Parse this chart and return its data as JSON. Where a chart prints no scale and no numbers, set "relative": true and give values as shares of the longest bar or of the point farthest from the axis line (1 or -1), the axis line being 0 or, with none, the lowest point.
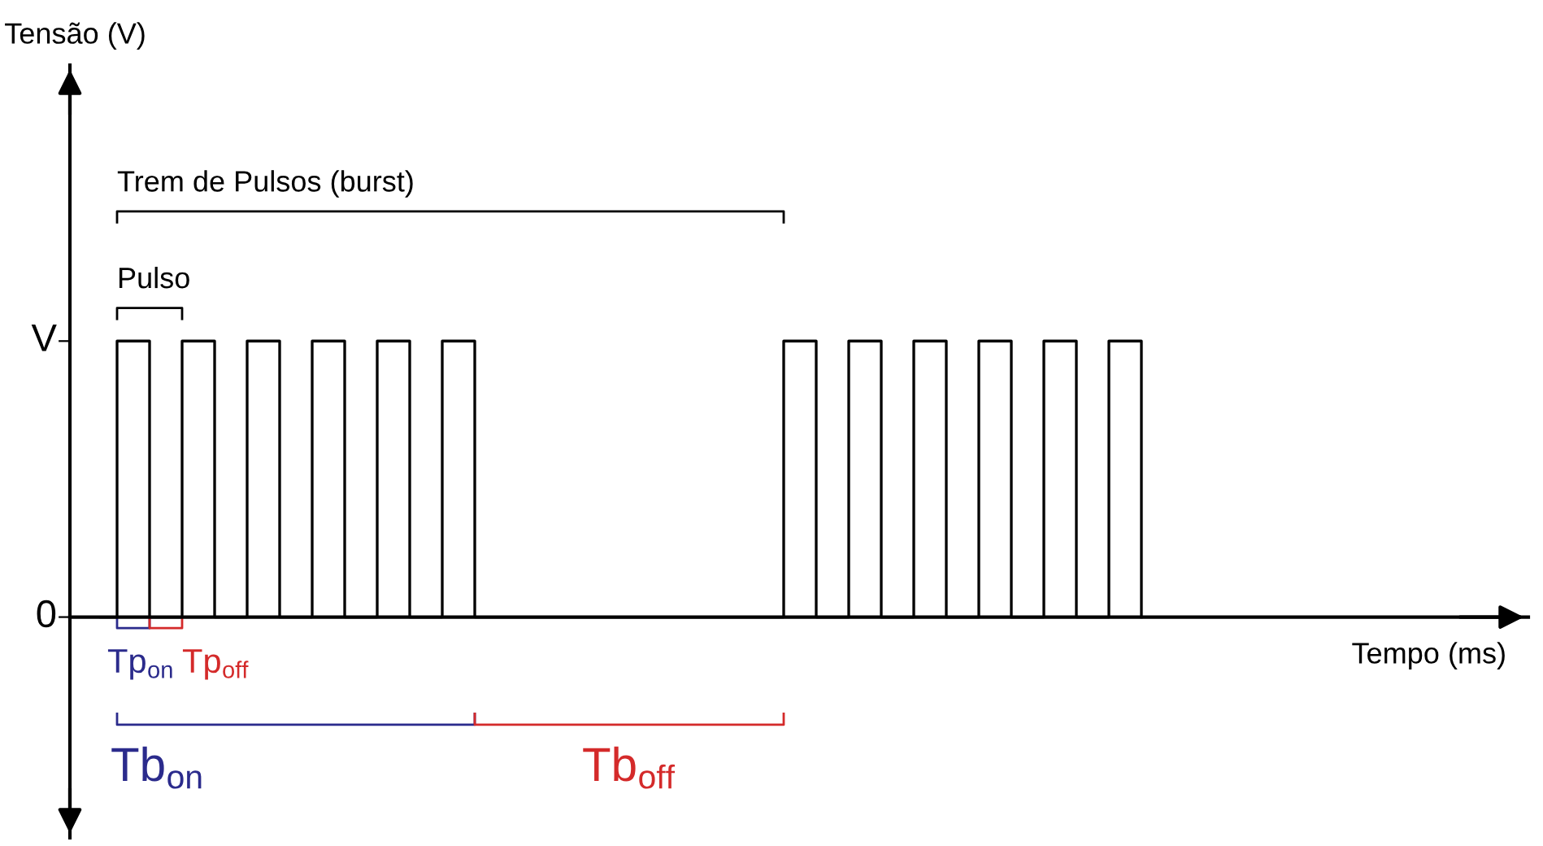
{
  "chart_data": {
    "type": "step",
    "categories": [
      null,
      null,
      null,
      null,
      null,
      null,
      null,
      null,
      null,
      null,
      null,
      null,
      null,
      null,
      null,
      null,
      null,
      null,
      null,
      null,
      null,
      null,
      null,
      null,
      null,
      null,
      null,
      null,
      null,
      null,
      null,
      null,
      null,
      null,
      null,
      null,
      null,
      null,
      null,
      null,
      null,
      null,
      null,
      null,
      null,
      null,
      null,
      null,
      null,
      null,
      null,
      null,
      null,
      null,
      null,
      null,
      null,
      null,
      null,
      null,
      null,
      null,
      null,
      null,
      null
    ],
    "values": [
      0,
      1,
      1,
      0,
      0,
      1,
      1,
      0,
      0,
      1,
      1,
      0,
      0,
      1,
      1,
      0,
      0,
      1,
      1,
      0,
      0,
      1,
      1,
      0,
      0,
      0,
      0,
      0,
      0,
      0,
      0,
      0,
      0,
      0,
      0,
      0,
      0,
      0,
      0,
      0,
      0,
      0,
      1,
      1,
      0,
      0,
      1,
      1,
      0,
      0,
      1,
      1,
      0,
      0,
      1,
      1,
      0,
      0,
      1,
      1,
      0,
      0,
      1,
      1,
      0
    ],
    "color": "#000000",
    "relative": true,
    "tick_labels": false,
    "grid": false,
    "legend": false,
    "annotations": [
      "Trem de Pulsos (burst)",
      "Pulso",
      "Tp$_{on}$",
      "Tp$_{off}$",
      "Tb$_{on}$",
      "Tb$_{off}$",
      "V",
      "0",
      "Tensão (V)",
      "Tempo (ms)"
    ]
  }
}
